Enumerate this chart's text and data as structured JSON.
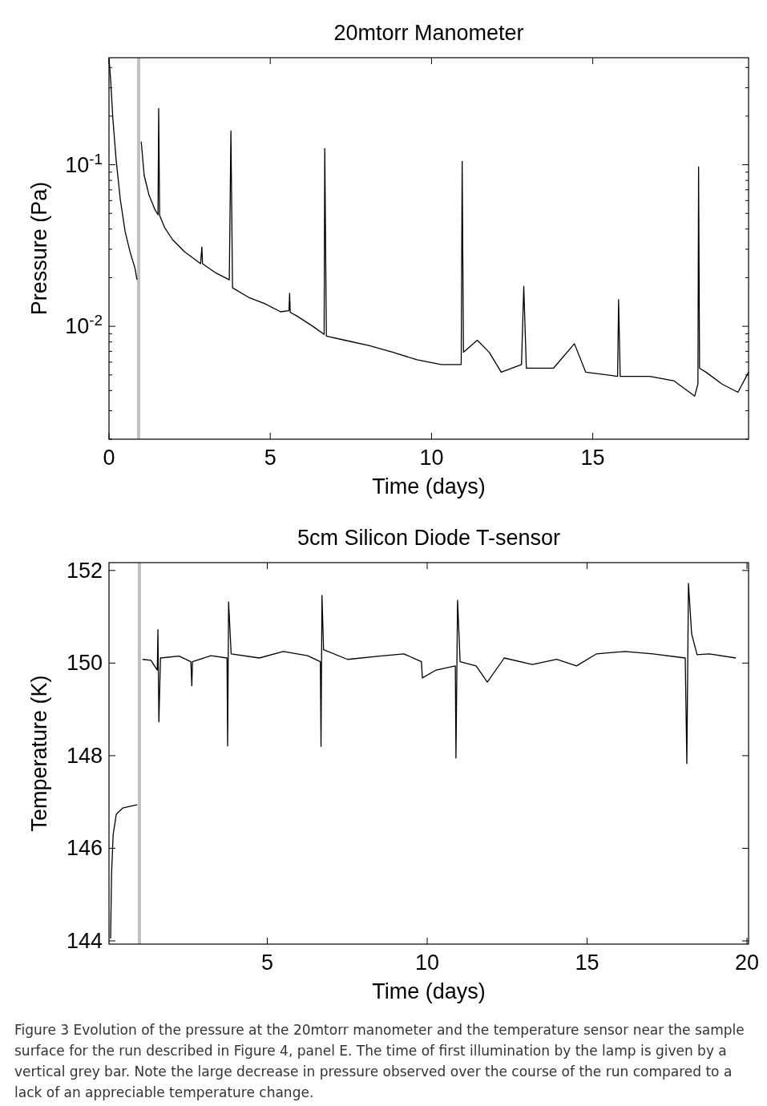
{
  "chart_data": [
    {
      "type": "line",
      "title": "20mtorr Manometer",
      "xlabel": "Time (days)",
      "ylabel": "Pressure (Pa)",
      "log": "y",
      "xlim": [
        0,
        19.83
      ],
      "xticks": [
        0,
        5,
        10,
        15
      ],
      "ylim": [
        0.002,
        0.46
      ],
      "yticks": [
        {
          "value": 0.002,
          "label": null
        },
        {
          "value": 0.003,
          "label": null
        },
        {
          "value": 0.004,
          "label": null
        },
        {
          "value": 0.005,
          "label": null
        },
        {
          "value": 0.006,
          "label": null
        },
        {
          "value": 0.007,
          "label": null
        },
        {
          "value": 0.008,
          "label": null
        },
        {
          "value": 0.009,
          "label": null
        },
        {
          "value": 0.01,
          "label": "10$^{-2}$"
        },
        {
          "value": 0.02,
          "label": null
        },
        {
          "value": 0.03,
          "label": null
        },
        {
          "value": 0.04,
          "label": null
        },
        {
          "value": 0.05,
          "label": null
        },
        {
          "value": 0.06,
          "label": null
        },
        {
          "value": 0.07,
          "label": null
        },
        {
          "value": 0.08,
          "label": null
        },
        {
          "value": 0.09,
          "label": null
        },
        {
          "value": 0.1,
          "label": "10$^{-1}$"
        },
        {
          "value": 0.2,
          "label": null
        },
        {
          "value": 0.3,
          "label": null
        },
        {
          "value": 0.4,
          "label": null
        }
      ],
      "ref_lines": [
        {
          "axis": "x",
          "value": 0.92,
          "color": "#c0c0c0"
        }
      ],
      "series": [
        {
          "color": "#000000",
          "x": [
            0,
            0.05,
            0.12,
            0.22,
            0.35,
            0.5,
            0.65,
            0.8,
            0.87,
            0.9,
            1.0,
            1.09,
            1.24,
            1.42,
            1.52,
            1.54,
            1.57,
            1.72,
            1.97,
            2.34,
            2.84,
            2.88,
            2.9,
            3.33,
            3.73,
            3.78,
            3.83,
            4.33,
            4.83,
            5.32,
            5.58,
            5.6,
            5.62,
            5.82,
            6.32,
            6.67,
            6.69,
            6.74,
            7.31,
            8.06,
            8.81,
            9.55,
            10.3,
            10.92,
            10.95,
            10.99,
            11.42,
            11.79,
            12.16,
            12.79,
            12.86,
            12.94,
            13.78,
            14.43,
            14.78,
            15.77,
            15.8,
            15.85,
            16.77,
            17.51,
            18.16,
            18.26,
            18.28,
            18.31,
            18.51,
            19.0,
            19.5,
            19.83
          ],
          "values": [
            0.454,
            0.34,
            0.192,
            0.108,
            0.061,
            0.0386,
            0.029,
            0.0231,
            0.0194,
            null,
            0.139,
            0.086,
            0.065,
            0.053,
            0.049,
            0.223,
            0.0486,
            0.041,
            0.0344,
            0.029,
            0.0244,
            0.031,
            0.0244,
            0.0213,
            0.0194,
            0.162,
            0.0173,
            0.0151,
            0.0138,
            0.0123,
            0.0125,
            0.016,
            0.0122,
            0.0116,
            0.01,
            0.0089,
            0.126,
            0.0087,
            0.0082,
            0.0076,
            0.0069,
            0.0062,
            0.0058,
            0.0058,
            0.105,
            0.0069,
            0.0082,
            0.0069,
            0.0052,
            0.0058,
            0.0177,
            0.0055,
            0.0055,
            0.0078,
            0.0052,
            0.0049,
            0.0146,
            0.0049,
            0.0049,
            0.0046,
            0.0037,
            0.0044,
            0.097,
            0.0055,
            0.0052,
            0.0044,
            0.0039,
            0.0052
          ]
        }
      ]
    },
    {
      "type": "line",
      "title": "5cm Silicon Diode T-sensor",
      "xlabel": "Time (days)",
      "ylabel": "Temperature (K)",
      "xlim": [
        0.05,
        20.05
      ],
      "xticks": [
        5,
        10,
        15,
        20
      ],
      "ylim": [
        143.93,
        152.17
      ],
      "yticks": [
        144,
        146,
        148,
        150,
        152
      ],
      "ref_lines": [
        {
          "axis": "x",
          "value": 1.0,
          "color": "#c0c0c0"
        }
      ],
      "annotations": [
        "Figure 3 Evolution of the pressure at the 20mtorr manometer and the temperature sensor near the sample surface for the run described in Figure 4, panel E. The time of first illumination by the lamp is given by a vertical grey bar. Note the large decrease in pressure observed over the course of the run compared to a lack of an appreciable temperature change."
      ],
      "series": [
        {
          "color": "#000000",
          "x": [
            0.1,
            0.13,
            0.18,
            0.28,
            0.48,
            0.93,
            0.97,
            1.1,
            1.36,
            1.56,
            1.58,
            1.61,
            1.66,
            2.24,
            2.61,
            2.64,
            2.66,
            3.24,
            3.74,
            3.76,
            3.79,
            3.87,
            4.75,
            5.5,
            6.26,
            6.66,
            6.68,
            6.71,
            6.76,
            7.51,
            8.52,
            9.27,
            9.82,
            9.85,
            10.28,
            10.88,
            10.9,
            10.95,
            11.03,
            11.53,
            11.88,
            12.41,
            13.29,
            14.05,
            14.67,
            15.3,
            16.18,
            17.06,
            18.07,
            18.12,
            18.17,
            18.27,
            18.44,
            18.82,
            19.65
          ],
          "values": [
            144.05,
            145.44,
            146.3,
            146.74,
            146.87,
            146.94,
            null,
            150.08,
            150.06,
            149.85,
            150.72,
            148.73,
            150.11,
            150.15,
            150.03,
            149.51,
            150.03,
            150.16,
            150.11,
            148.21,
            151.32,
            150.2,
            150.11,
            150.25,
            150.16,
            150.03,
            148.2,
            151.46,
            150.29,
            150.08,
            150.15,
            150.2,
            150.03,
            149.68,
            149.85,
            149.94,
            147.95,
            151.36,
            150.03,
            149.94,
            149.59,
            150.11,
            149.97,
            150.08,
            149.94,
            150.2,
            150.25,
            150.2,
            150.11,
            147.83,
            151.72,
            150.63,
            150.18,
            150.2,
            150.11
          ]
        }
      ]
    }
  ]
}
